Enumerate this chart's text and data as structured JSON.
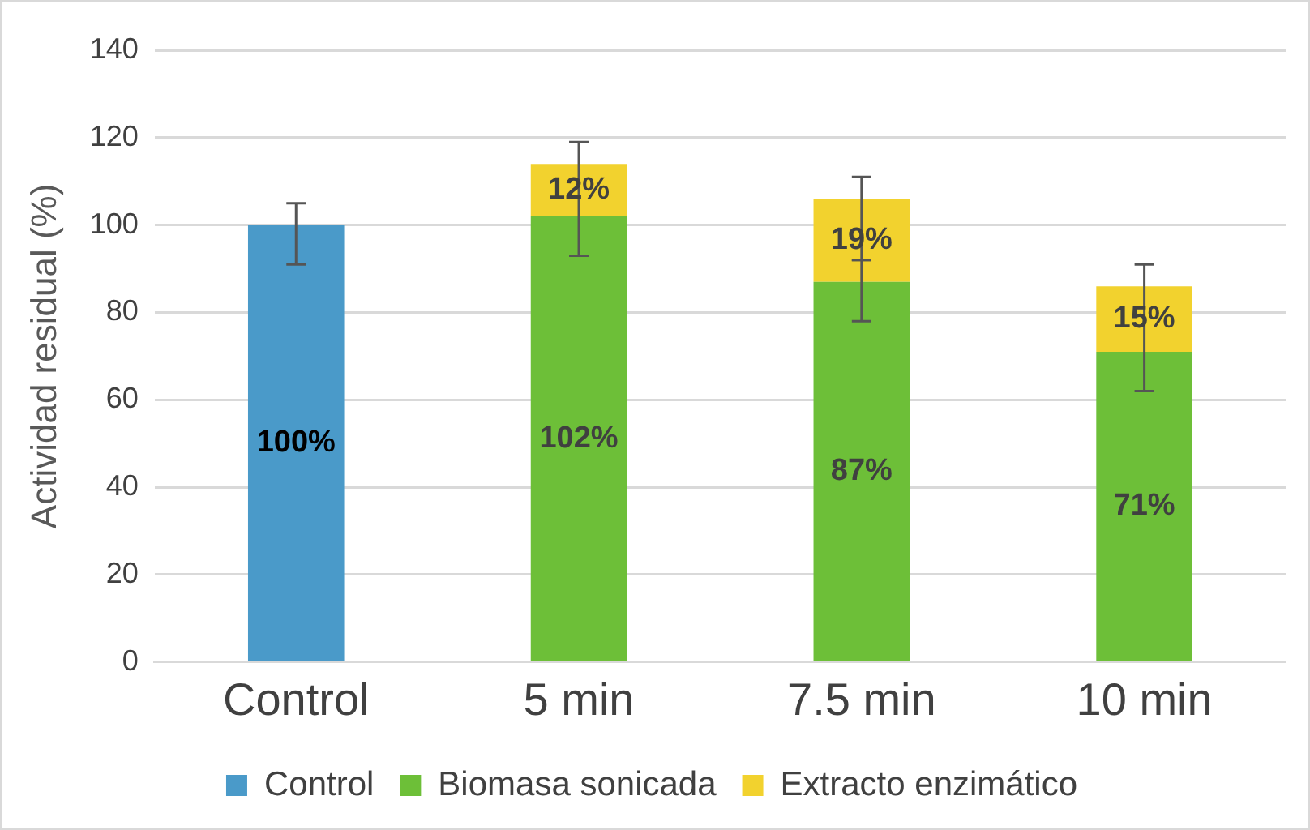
{
  "chart_data": {
    "type": "bar",
    "stacked": true,
    "ylabel": "Actividad residual (%)",
    "categories": [
      "Control",
      "5 min",
      "7.5 min",
      "10 min"
    ],
    "ylim": [
      0,
      140
    ],
    "yticks": [
      0,
      20,
      40,
      60,
      80,
      100,
      120,
      140
    ],
    "grid": "y",
    "legend": "bottom",
    "series": [
      {
        "name": "Control",
        "color": "#4a9ac9",
        "values": [
          100,
          null,
          null,
          null
        ],
        "value_labels": [
          "100%",
          null,
          null,
          null
        ],
        "errors": [
          [
            91,
            105
          ],
          null,
          null,
          null
        ]
      },
      {
        "name": "Biomasa sonicada",
        "color": "#6dbf38",
        "values": [
          null,
          102,
          87,
          71
        ],
        "value_labels": [
          null,
          "102%",
          "87%",
          "71%"
        ],
        "errors": [
          null,
          null,
          [
            78,
            92
          ],
          null
        ]
      },
      {
        "name": "Extracto enzimático",
        "color": "#f2d22e",
        "values": [
          null,
          12,
          19,
          15
        ],
        "value_labels": [
          null,
          "12%",
          "19%",
          "15%"
        ],
        "errors": [
          null,
          [
            93,
            119
          ],
          [
            92,
            111
          ],
          [
            62,
            91
          ]
        ]
      }
    ]
  }
}
